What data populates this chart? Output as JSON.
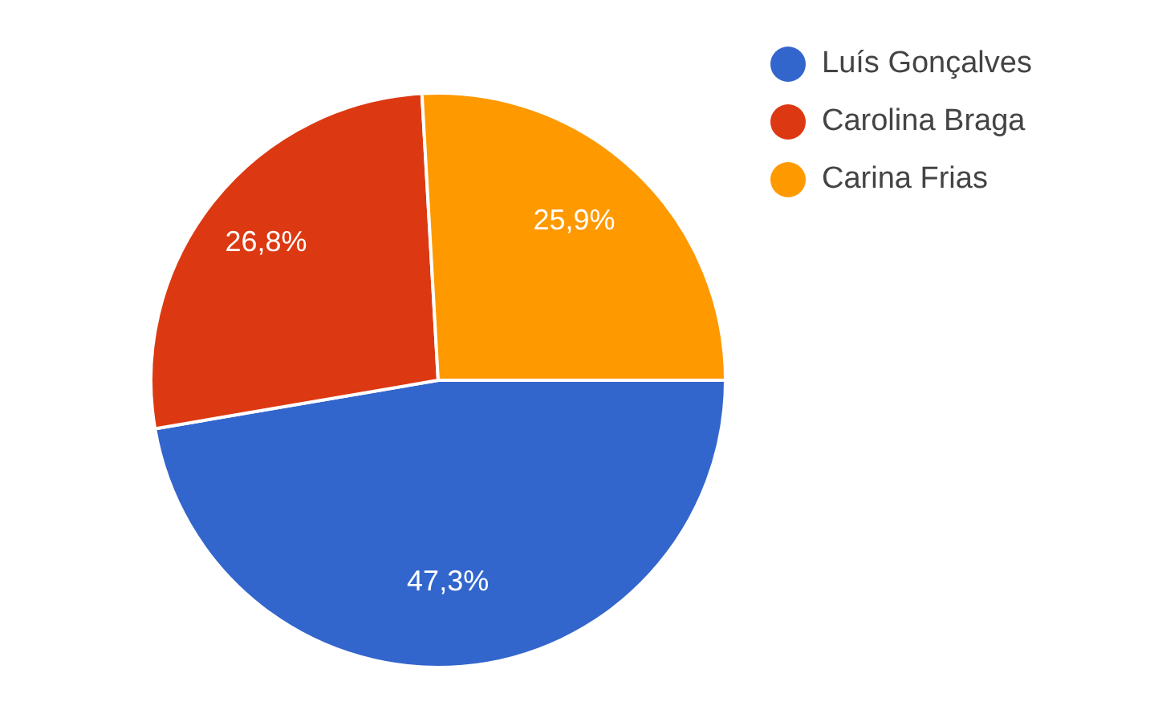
{
  "chart_data": {
    "type": "pie",
    "categories": [
      "Luís Gonçalves",
      "Carolina Braga",
      "Carina Frias"
    ],
    "values": [
      47.3,
      26.8,
      25.9
    ],
    "value_labels": [
      "47,3%",
      "26,8%",
      "25,9%"
    ],
    "colors": [
      "#3366cc",
      "#dc3912",
      "#ff9900"
    ],
    "legend": "top right"
  }
}
